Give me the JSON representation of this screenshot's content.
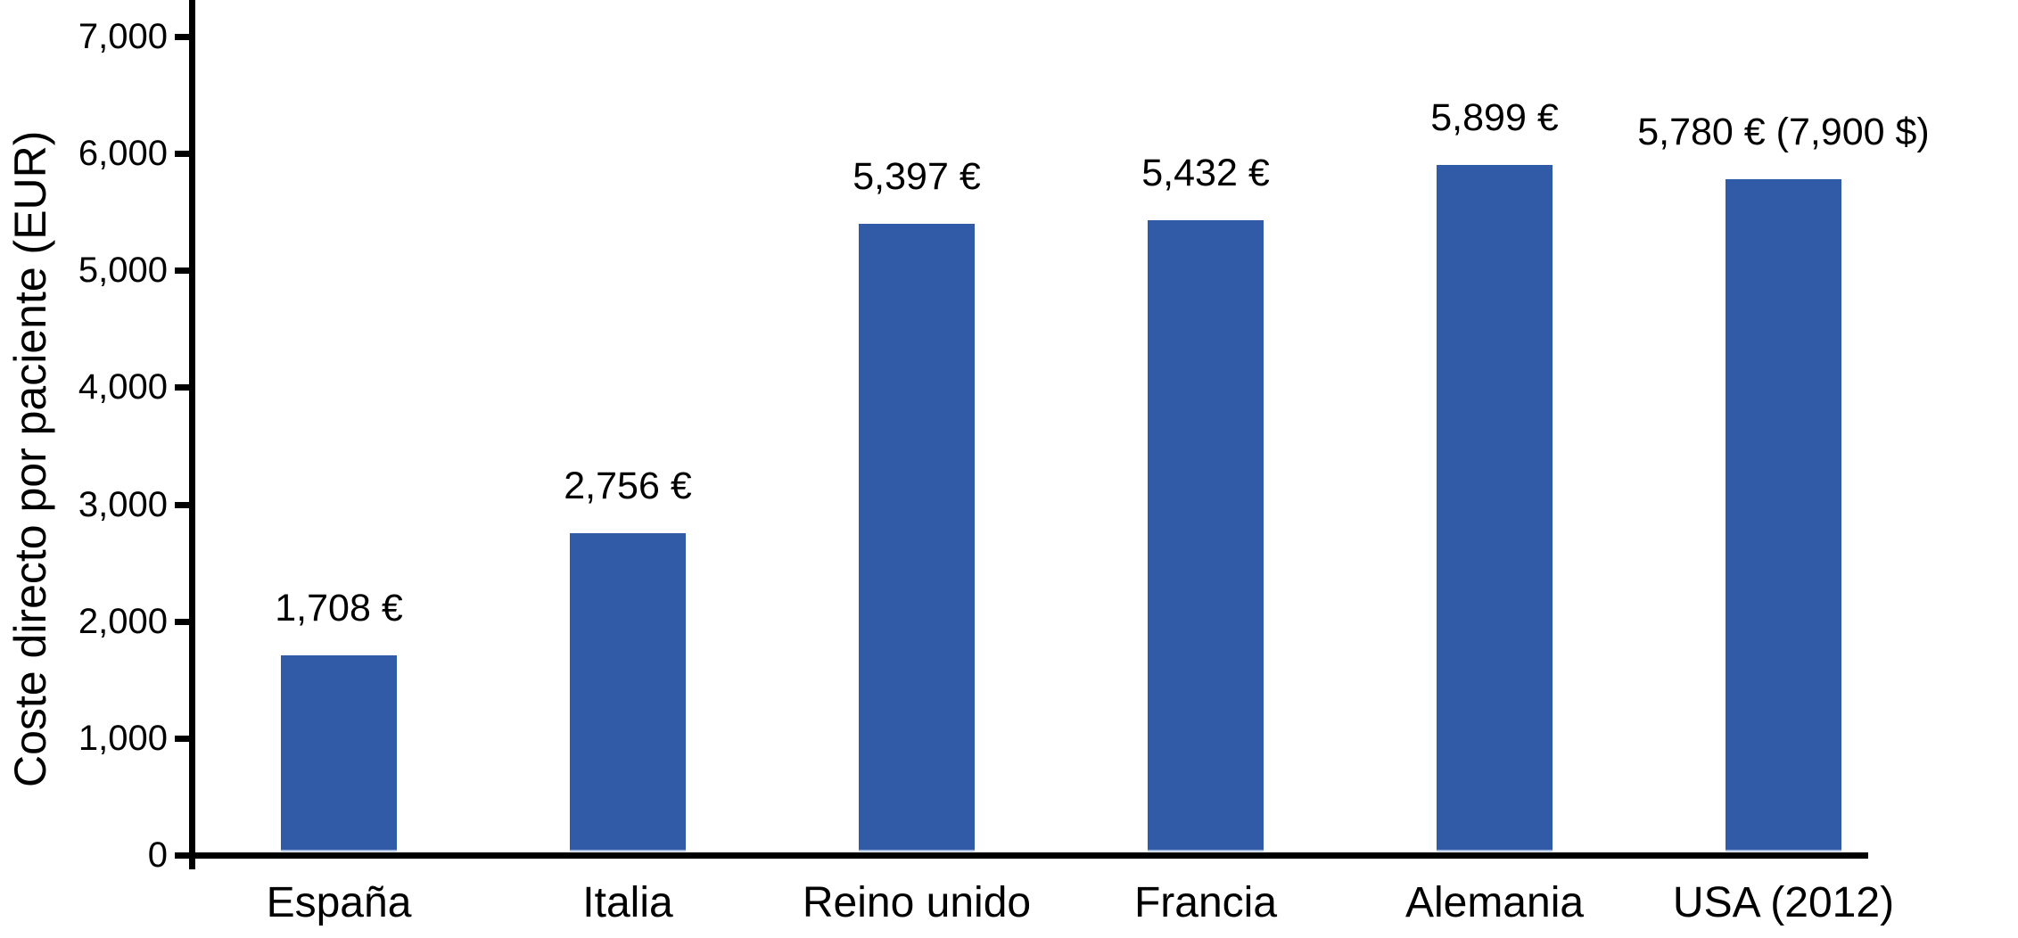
{
  "chart_data": {
    "type": "bar",
    "title": "",
    "xlabel": "",
    "ylabel": "Coste directo por paciente (EUR)",
    "categories": [
      "España",
      "Italia",
      "Reino unido",
      "Francia",
      "Alemania",
      "USA (2012)"
    ],
    "values": [
      1708,
      2756,
      5397,
      5432,
      5899,
      5780
    ],
    "value_labels": [
      "1,708 €",
      "2,756 €",
      "5,397 €",
      "5,432 €",
      "5,899 €",
      "5,780 € (7,900 $)"
    ],
    "yticks": [
      0,
      1000,
      2000,
      3000,
      4000,
      5000,
      6000,
      7000
    ],
    "ytick_labels": [
      "0",
      "1,000",
      "2,000",
      "3,000",
      "4,000",
      "5,000",
      "6,000",
      "7,000"
    ],
    "ylim": [
      0,
      7000
    ],
    "grid": false,
    "legend": false,
    "bar_color": "#315AA7",
    "bar_edge_color": "#A6BDE0",
    "axis_color": "#000000",
    "text_color": "#000000",
    "background_color": "#ffffff"
  }
}
